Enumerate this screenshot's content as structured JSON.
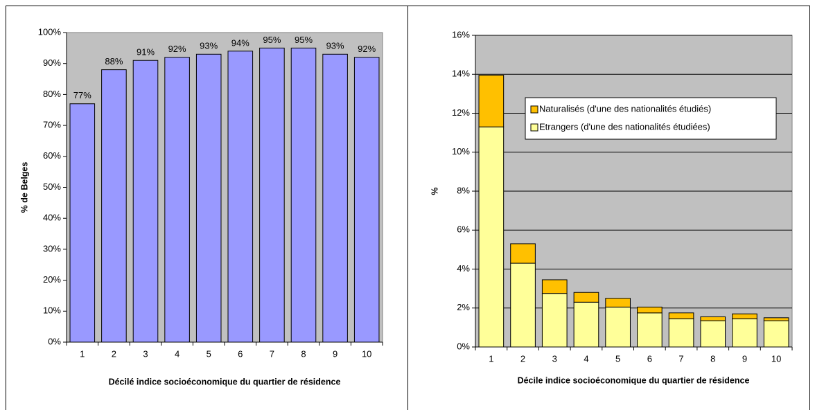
{
  "chart_data": [
    {
      "type": "bar",
      "y_label": "% de Belges",
      "x_label": "Décilé indice socioéconomique du quartier de résidence",
      "categories": [
        "1",
        "2",
        "3",
        "4",
        "5",
        "6",
        "7",
        "8",
        "9",
        "10"
      ],
      "values": [
        77,
        88,
        91,
        92,
        93,
        94,
        95,
        95,
        93,
        92
      ],
      "value_labels": [
        "77%",
        "88%",
        "91%",
        "92%",
        "93%",
        "94%",
        "95%",
        "95%",
        "93%",
        "92%"
      ],
      "color": "#9999ff",
      "ylim": [
        0,
        100
      ],
      "yticks": [
        {
          "value": 0,
          "label": "0%"
        },
        {
          "value": 10,
          "label": "10%"
        },
        {
          "value": 20,
          "label": "20%"
        },
        {
          "value": 30,
          "label": "30%"
        },
        {
          "value": 40,
          "label": "40%"
        },
        {
          "value": 50,
          "label": "50%"
        },
        {
          "value": 60,
          "label": "60%"
        },
        {
          "value": 70,
          "label": "70%"
        },
        {
          "value": 80,
          "label": "80%"
        },
        {
          "value": 90,
          "label": "90%"
        },
        {
          "value": 100,
          "label": "100%"
        }
      ],
      "grid": false
    },
    {
      "type": "stacked_bar",
      "y_label": "%",
      "x_label": "Décile indice socioéconomique du quartier de résidence",
      "categories": [
        "1",
        "2",
        "3",
        "4",
        "5",
        "6",
        "7",
        "8",
        "9",
        "10"
      ],
      "series": [
        {
          "name": "Etrangers (d'une des nationalités étudiées)",
          "color": "#ffff99",
          "values": [
            11.3,
            4.3,
            2.75,
            2.3,
            2.05,
            1.75,
            1.45,
            1.35,
            1.45,
            1.35
          ]
        },
        {
          "name": "Naturalisés (d'une des nationalités étudiés)",
          "color": "#ffc000",
          "values": [
            2.65,
            1.0,
            0.7,
            0.5,
            0.45,
            0.3,
            0.3,
            0.2,
            0.25,
            0.15
          ]
        }
      ],
      "ylim": [
        0,
        16
      ],
      "yticks": [
        {
          "value": 0,
          "label": "0%"
        },
        {
          "value": 2,
          "label": "2%"
        },
        {
          "value": 4,
          "label": "4%"
        },
        {
          "value": 6,
          "label": "6%"
        },
        {
          "value": 8,
          "label": "8%"
        },
        {
          "value": 10,
          "label": "10%"
        },
        {
          "value": 12,
          "label": "12%"
        },
        {
          "value": 14,
          "label": "14%"
        },
        {
          "value": 16,
          "label": "16%"
        }
      ],
      "grid": true,
      "legend": "upper-right"
    }
  ]
}
